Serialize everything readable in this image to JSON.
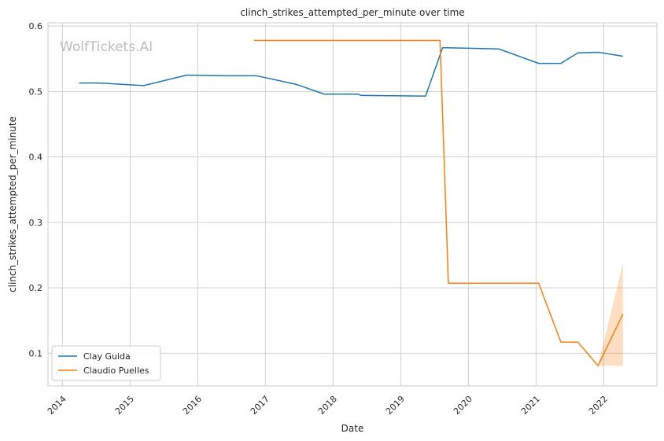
{
  "watermark": "WolfTickets.AI",
  "chart_data": {
    "type": "line",
    "title": "clinch_strikes_attempted_per_minute over time",
    "xlabel": "Date",
    "ylabel": "clinch_strikes_attempted_per_minute",
    "xlim": [
      "2013-10-15",
      "2022-10-15"
    ],
    "ylim": [
      0.05,
      0.605
    ],
    "x_ticks": [
      "2014",
      "2015",
      "2016",
      "2017",
      "2018",
      "2019",
      "2020",
      "2021",
      "2022"
    ],
    "y_ticks": [
      0.1,
      0.2,
      0.3,
      0.4,
      0.5,
      0.6
    ],
    "grid": true,
    "legend_position": "lower-left",
    "series": [
      {
        "name": "Clay Guida",
        "color": "#1f77b4",
        "x": [
          "2014-04-01",
          "2014-07-15",
          "2015-03-15",
          "2015-11-01",
          "2016-06-01",
          "2016-11-15",
          "2017-06-15",
          "2017-11-15",
          "2018-05-15",
          "2018-06-01",
          "2019-05-15",
          "2019-08-15",
          "2020-06-15",
          "2021-01-15",
          "2021-05-15",
          "2021-08-15",
          "2021-12-01",
          "2022-04-15"
        ],
        "values": [
          0.513,
          0.513,
          0.509,
          0.525,
          0.524,
          0.524,
          0.511,
          0.496,
          0.496,
          0.494,
          0.493,
          0.567,
          0.565,
          0.543,
          0.543,
          0.559,
          0.56,
          0.554
        ]
      },
      {
        "name": "Claudio Puelles",
        "color": "#ff7f0e",
        "x": [
          "2016-11-01",
          "2019-08-01",
          "2019-09-15",
          "2021-01-15",
          "2021-05-15",
          "2021-08-15",
          "2021-12-01",
          "2022-04-15"
        ],
        "values": [
          0.578,
          0.578,
          0.207,
          0.207,
          0.117,
          0.117,
          0.081,
          0.16
        ],
        "band": {
          "x": [
            "2021-12-01",
            "2022-04-15"
          ],
          "lower": [
            0.081,
            0.081
          ],
          "upper": [
            0.081,
            0.238
          ]
        }
      }
    ]
  }
}
